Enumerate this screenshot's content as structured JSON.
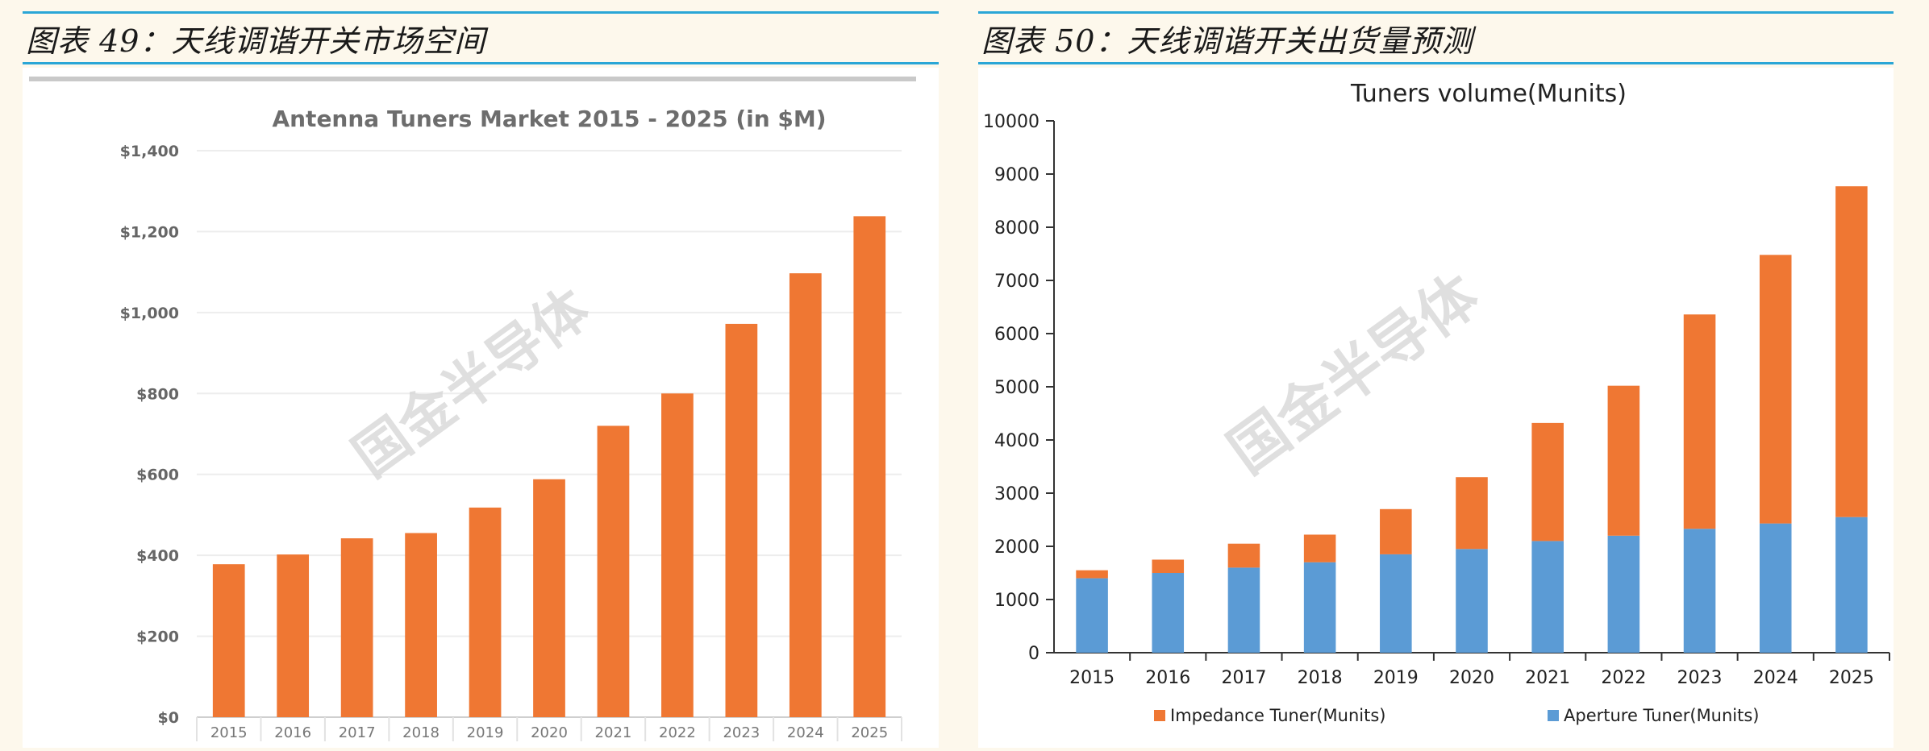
{
  "left_panel": {
    "heading": "图表 49：天线调谐开关市场空间"
  },
  "right_panel": {
    "heading": "图表 50：天线调谐开关出货量预测"
  },
  "watermark": "国金半导体",
  "colors": {
    "orange": "#ef7733",
    "blue": "#5b9bd5",
    "accent_line": "#2aa6d6",
    "background": "#fdf8ec"
  },
  "chart_data": [
    {
      "type": "bar",
      "title": "Antenna Tuners Market 2015 - 2025 (in $M)",
      "categories": [
        "2015",
        "2016",
        "2017",
        "2018",
        "2019",
        "2020",
        "2021",
        "2022",
        "2023",
        "2024",
        "2025"
      ],
      "values": [
        378,
        402,
        442,
        455,
        518,
        588,
        720,
        800,
        972,
        1097,
        1238
      ],
      "ylim": [
        0,
        1400
      ],
      "yticks": [
        0,
        200,
        400,
        600,
        800,
        1000,
        1200,
        1400
      ],
      "ytick_labels": [
        "$0",
        "$200",
        "$400",
        "$600",
        "$800",
        "$1,000",
        "$1,200",
        "$1,400"
      ],
      "grid": true,
      "color": "#ef7733"
    },
    {
      "type": "bar",
      "stacked": true,
      "title": "Tuners volume(Munits)",
      "categories": [
        "2015",
        "2016",
        "2017",
        "2018",
        "2019",
        "2020",
        "2021",
        "2022",
        "2023",
        "2024",
        "2025"
      ],
      "series": [
        {
          "name": "Aperture Tuner(Munits)",
          "color": "#5b9bd5",
          "values": [
            1400,
            1500,
            1600,
            1700,
            1850,
            1950,
            2100,
            2200,
            2330,
            2430,
            2550
          ]
        },
        {
          "name": "Impedance Tuner(Munits)",
          "color": "#ef7733",
          "values": [
            150,
            250,
            450,
            520,
            850,
            1350,
            2220,
            2820,
            4030,
            5050,
            6220
          ]
        }
      ],
      "ylim": [
        0,
        10000
      ],
      "yticks": [
        0,
        1000,
        2000,
        3000,
        4000,
        5000,
        6000,
        7000,
        8000,
        9000,
        10000
      ],
      "ytick_labels": [
        "0",
        "1000",
        "2000",
        "3000",
        "4000",
        "5000",
        "6000",
        "7000",
        "8000",
        "9000",
        "10000"
      ],
      "grid": false,
      "legend_position": "bottom",
      "legend_order": [
        "Impedance Tuner(Munits)",
        "Aperture Tuner(Munits)"
      ]
    }
  ]
}
